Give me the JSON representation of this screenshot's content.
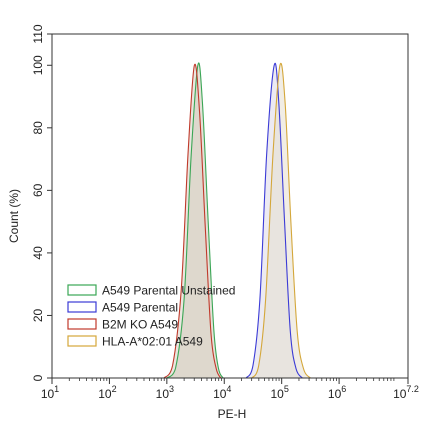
{
  "chart_data": {
    "type": "histogram-overlay",
    "xlabel": "PE-H",
    "ylabel": "Count (%)",
    "xscale": "log10",
    "xlim_exponent": [
      1,
      7.2
    ],
    "ylim": [
      0,
      110
    ],
    "x_ticks": [
      {
        "base": "10",
        "exp": "1",
        "value": 1
      },
      {
        "base": "10",
        "exp": "2",
        "value": 2
      },
      {
        "base": "10",
        "exp": "3",
        "value": 3
      },
      {
        "base": "10",
        "exp": "4",
        "value": 4
      },
      {
        "base": "10",
        "exp": "5",
        "value": 5
      },
      {
        "base": "10",
        "exp": "6",
        "value": 6
      },
      {
        "base": "10",
        "exp": "7.2",
        "value": 7.2
      }
    ],
    "y_ticks": [
      "0",
      "20",
      "40",
      "60",
      "80",
      "100",
      "110"
    ],
    "y_tick_values": [
      0,
      20,
      40,
      60,
      80,
      100,
      110
    ],
    "legend_position": "lower-left",
    "series": [
      {
        "name": "A549 Parental Unstained",
        "color": "#3aa655",
        "fill": "#cfc9b8",
        "peak_log": 3.54,
        "points": [
          [
            3.0,
            0
          ],
          [
            3.15,
            3
          ],
          [
            3.3,
            25
          ],
          [
            3.42,
            70
          ],
          [
            3.54,
            100
          ],
          [
            3.62,
            88
          ],
          [
            3.72,
            50
          ],
          [
            3.82,
            15
          ],
          [
            3.9,
            3
          ],
          [
            3.98,
            0
          ]
        ]
      },
      {
        "name": "A549 Parental",
        "color": "#3b3bd6",
        "fill": "#ddd8e8",
        "peak_log": 4.87,
        "points": [
          [
            4.38,
            0
          ],
          [
            4.5,
            4
          ],
          [
            4.62,
            25
          ],
          [
            4.74,
            72
          ],
          [
            4.87,
            100
          ],
          [
            4.95,
            88
          ],
          [
            5.05,
            50
          ],
          [
            5.15,
            15
          ],
          [
            5.25,
            3
          ],
          [
            5.36,
            0
          ]
        ]
      },
      {
        "name": "B2M KO A549",
        "color": "#c0392b",
        "fill": "#d8d2c5",
        "peak_log": 3.48,
        "points": [
          [
            2.95,
            0
          ],
          [
            3.1,
            4
          ],
          [
            3.25,
            28
          ],
          [
            3.37,
            72
          ],
          [
            3.48,
            100
          ],
          [
            3.57,
            85
          ],
          [
            3.67,
            48
          ],
          [
            3.77,
            14
          ],
          [
            3.86,
            3
          ],
          [
            3.94,
            0
          ]
        ]
      },
      {
        "name": "HLA-A*02:01 A549",
        "color": "#d4a73a",
        "fill": "#e6dfd0",
        "peak_log": 4.97,
        "points": [
          [
            4.48,
            0
          ],
          [
            4.6,
            4
          ],
          [
            4.72,
            25
          ],
          [
            4.85,
            72
          ],
          [
            4.97,
            100
          ],
          [
            5.06,
            88
          ],
          [
            5.16,
            50
          ],
          [
            5.27,
            15
          ],
          [
            5.38,
            3
          ],
          [
            5.5,
            0
          ]
        ]
      }
    ]
  }
}
